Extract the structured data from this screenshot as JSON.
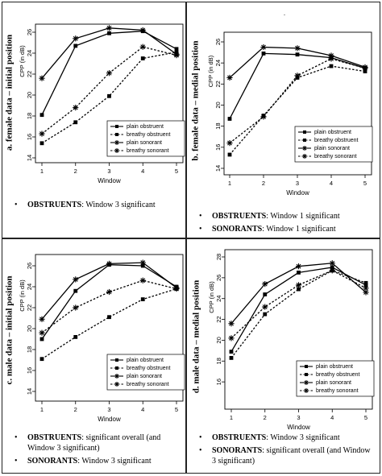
{
  "stray_mark": ".",
  "panels": [
    {
      "panel_title": "a. female data – initial position",
      "notes": [
        {
          "bold": "OBSTRUENTS",
          "text": ": Window 3 significant"
        }
      ]
    },
    {
      "panel_title": "b. female data – medial position",
      "notes": [
        {
          "bold": "OBSTRUENTS",
          "text": ": Window 1 significant"
        },
        {
          "bold": "SONORANTS",
          "text": ": Window 1 significant"
        }
      ]
    },
    {
      "panel_title": "c. male data – initial position",
      "notes": [
        {
          "bold": "OBSTRUENTS",
          "text": ": significant overall (and Window 3 significant)"
        },
        {
          "bold": "SONORANTS",
          "text": ": Window 3 significant"
        }
      ]
    },
    {
      "panel_title": "d. male data – medial position",
      "notes": [
        {
          "bold": "OBSTRUENTS",
          "text": ": Window 3 significant"
        },
        {
          "bold": "SONORANTS",
          "text": ": significant overall (and Window 3 significant)"
        }
      ]
    }
  ],
  "chart_data": [
    {
      "type": "line",
      "xlabel": "Window",
      "ylabel": "CPP (in dB)",
      "x": [
        1,
        2,
        3,
        4,
        5
      ],
      "xlim": [
        1,
        5
      ],
      "ylim": [
        14,
        26
      ],
      "yticks": [
        14,
        16,
        18,
        20,
        22,
        24,
        26
      ],
      "legend_position": "bottom-right",
      "series": [
        {
          "name": "plain obstruent",
          "values": [
            18.1,
            24.7,
            25.9,
            26.1,
            24.4
          ],
          "dash": "solid",
          "marker": "square"
        },
        {
          "name": "breathy obstruent",
          "values": [
            15.4,
            17.4,
            19.9,
            23.5,
            24.1
          ],
          "dash": "dashed",
          "marker": "square"
        },
        {
          "name": "plain sonorant",
          "values": [
            21.6,
            25.4,
            26.4,
            26.2,
            23.9
          ],
          "dash": "solid",
          "marker": "star"
        },
        {
          "name": "breathy sonorant",
          "values": [
            16.3,
            18.8,
            22.1,
            24.6,
            23.8
          ],
          "dash": "dashed",
          "marker": "star"
        }
      ]
    },
    {
      "type": "line",
      "xlabel": "Window",
      "ylabel": "CPP (in dB)",
      "x": [
        1,
        2,
        3,
        4,
        5
      ],
      "xlim": [
        1,
        5
      ],
      "ylim": [
        14,
        26
      ],
      "yticks": [
        14,
        16,
        18,
        20,
        22,
        24,
        26
      ],
      "legend_position": "bottom-right",
      "series": [
        {
          "name": "plain obstruent",
          "values": [
            18.7,
            24.9,
            24.8,
            24.5,
            23.5
          ],
          "dash": "solid",
          "marker": "square"
        },
        {
          "name": "breathy obstruent",
          "values": [
            15.3,
            19.0,
            22.6,
            23.7,
            23.2
          ],
          "dash": "dashed",
          "marker": "square"
        },
        {
          "name": "plain sonorant",
          "values": [
            22.6,
            25.5,
            25.4,
            24.7,
            23.6
          ],
          "dash": "solid",
          "marker": "star"
        },
        {
          "name": "breathy sonorant",
          "values": [
            16.4,
            18.9,
            22.8,
            24.4,
            23.5
          ],
          "dash": "dashed",
          "marker": "star"
        }
      ]
    },
    {
      "type": "line",
      "xlabel": "Window",
      "ylabel": "CPP (in dB)",
      "x": [
        1,
        2,
        3,
        4,
        5
      ],
      "xlim": [
        1,
        5
      ],
      "ylim": [
        14,
        26
      ],
      "yticks": [
        14,
        16,
        18,
        20,
        22,
        24,
        26
      ],
      "legend_position": "bottom-right",
      "series": [
        {
          "name": "plain obstruent",
          "values": [
            19.0,
            23.6,
            26.1,
            26.0,
            24.0
          ],
          "dash": "solid",
          "marker": "square"
        },
        {
          "name": "breathy obstruent",
          "values": [
            17.1,
            19.2,
            21.1,
            22.8,
            23.8
          ],
          "dash": "dashed",
          "marker": "square"
        },
        {
          "name": "plain sonorant",
          "values": [
            20.9,
            24.7,
            26.2,
            26.3,
            23.9
          ],
          "dash": "solid",
          "marker": "star"
        },
        {
          "name": "breathy sonorant",
          "values": [
            19.6,
            22.0,
            23.5,
            24.6,
            23.8
          ],
          "dash": "dashed",
          "marker": "star"
        }
      ]
    },
    {
      "type": "line",
      "xlabel": "Window",
      "ylabel": "CPP (in dB)",
      "x": [
        1,
        2,
        3,
        4,
        5
      ],
      "xlim": [
        1,
        5
      ],
      "ylim": [
        14,
        28
      ],
      "yticks": [
        16,
        18,
        20,
        22,
        24,
        26,
        28
      ],
      "legend_position": "bottom-right",
      "series": [
        {
          "name": "plain obstruent",
          "values": [
            18.9,
            24.4,
            26.5,
            27.0,
            25.3
          ],
          "dash": "solid",
          "marker": "square"
        },
        {
          "name": "breathy obstruent",
          "values": [
            18.3,
            22.5,
            24.9,
            26.7,
            25.5
          ],
          "dash": "dashed",
          "marker": "square"
        },
        {
          "name": "plain sonorant",
          "values": [
            21.6,
            25.4,
            27.1,
            27.4,
            24.6
          ],
          "dash": "solid",
          "marker": "star"
        },
        {
          "name": "breathy sonorant",
          "values": [
            20.2,
            23.2,
            25.3,
            26.7,
            25.0
          ],
          "dash": "dashed",
          "marker": "star"
        }
      ]
    }
  ]
}
